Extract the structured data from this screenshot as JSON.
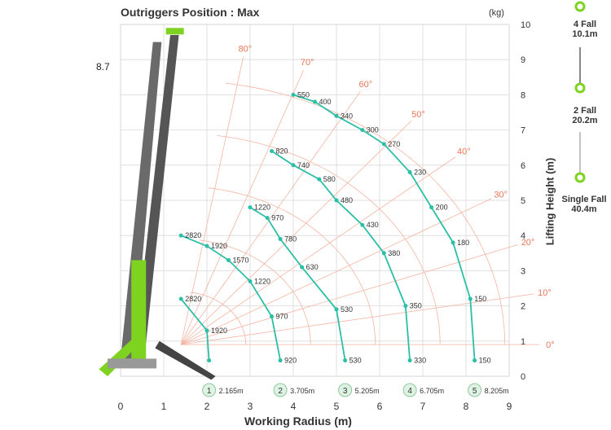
{
  "chart_data": {
    "type": "line",
    "title": "Outriggers Position : Max",
    "unit": "(kg)",
    "xlabel": "Working Radius (m)",
    "ylabel": "Lifting Height (m)",
    "xlim": [
      0,
      9
    ],
    "ylim": [
      0,
      10
    ],
    "x_ticks": [
      "0",
      "1",
      "2",
      "3",
      "4",
      "5",
      "6",
      "7",
      "8",
      "9"
    ],
    "y_ticks": [
      "0",
      "1",
      "2",
      "3",
      "4",
      "5",
      "6",
      "7",
      "8",
      "9",
      "10"
    ],
    "grid": true,
    "boom_height_label": "8.7",
    "angle_lines": [
      "0°",
      "10°",
      "20°",
      "30°",
      "40°",
      "50°",
      "60°",
      "70°",
      "80°"
    ],
    "series": [
      {
        "marker": "1",
        "radius_label": "2.165m",
        "points": [
          {
            "x": 2.05,
            "y": 0.45,
            "label": ""
          },
          {
            "x": 2.0,
            "y": 1.3,
            "label": "1920"
          },
          {
            "x": 1.4,
            "y": 2.2,
            "label": "2820"
          }
        ]
      },
      {
        "marker": "2",
        "radius_label": "3.705m",
        "points": [
          {
            "x": 3.7,
            "y": 0.45,
            "label": "920"
          },
          {
            "x": 3.5,
            "y": 1.7,
            "label": "970"
          },
          {
            "x": 3.0,
            "y": 2.7,
            "label": "1220"
          },
          {
            "x": 2.5,
            "y": 3.3,
            "label": "1570"
          },
          {
            "x": 2.0,
            "y": 3.7,
            "label": "1920"
          },
          {
            "x": 1.4,
            "y": 4.0,
            "label": "2820"
          }
        ]
      },
      {
        "marker": "3",
        "radius_label": "5.205m",
        "points": [
          {
            "x": 5.2,
            "y": 0.45,
            "label": "530"
          },
          {
            "x": 5.0,
            "y": 1.9,
            "label": "530"
          },
          {
            "x": 4.2,
            "y": 3.1,
            "label": "630"
          },
          {
            "x": 3.7,
            "y": 3.9,
            "label": "780"
          },
          {
            "x": 3.4,
            "y": 4.5,
            "label": "970"
          },
          {
            "x": 3.0,
            "y": 4.8,
            "label": "1220"
          }
        ]
      },
      {
        "marker": "4",
        "radius_label": "6.705m",
        "points": [
          {
            "x": 6.7,
            "y": 0.45,
            "label": "330"
          },
          {
            "x": 6.6,
            "y": 2.0,
            "label": "350"
          },
          {
            "x": 6.1,
            "y": 3.5,
            "label": "380"
          },
          {
            "x": 5.6,
            "y": 4.3,
            "label": "430"
          },
          {
            "x": 5.0,
            "y": 5.0,
            "label": "480"
          },
          {
            "x": 4.6,
            "y": 5.6,
            "label": "580"
          },
          {
            "x": 4.0,
            "y": 6.0,
            "label": "740"
          },
          {
            "x": 3.5,
            "y": 6.4,
            "label": "820"
          }
        ]
      },
      {
        "marker": "5",
        "radius_label": "8.205m",
        "points": [
          {
            "x": 8.2,
            "y": 0.45,
            "label": "150"
          },
          {
            "x": 8.1,
            "y": 2.2,
            "label": "150"
          },
          {
            "x": 7.7,
            "y": 3.8,
            "label": "180"
          },
          {
            "x": 7.2,
            "y": 4.8,
            "label": "200"
          },
          {
            "x": 6.7,
            "y": 5.8,
            "label": "230"
          },
          {
            "x": 6.1,
            "y": 6.6,
            "label": "270"
          },
          {
            "x": 5.6,
            "y": 7.0,
            "label": "300"
          },
          {
            "x": 5.0,
            "y": 7.4,
            "label": "340"
          },
          {
            "x": 4.5,
            "y": 7.8,
            "label": "400"
          },
          {
            "x": 4.0,
            "y": 8.0,
            "label": "550"
          }
        ]
      }
    ]
  },
  "colors": {
    "curve": "#2bbfa6",
    "grid": "#d9d9d9",
    "angle": "#f4b5a2",
    "angle_text": "#e8775a",
    "boom_dark": "#555555",
    "boom_green": "#7ed321"
  },
  "hook_info": [
    {
      "name": "4 Fall",
      "length": "10.1m"
    },
    {
      "name": "2 Fall",
      "length": "20.2m"
    },
    {
      "name": "Single Fall",
      "length": "40.4m"
    }
  ]
}
